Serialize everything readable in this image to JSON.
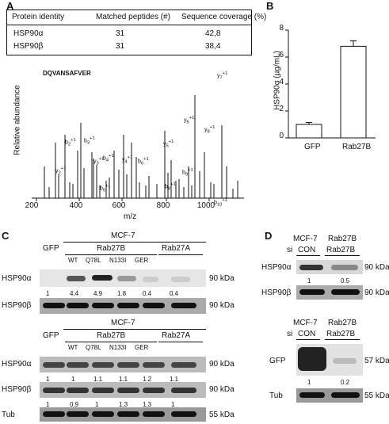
{
  "panels": {
    "a": "A",
    "b": "B",
    "c": "C",
    "d": "D"
  },
  "table": {
    "headers": [
      "Protein identity",
      "Matched peptides (#)",
      "Sequence coverage (%)"
    ],
    "rows": [
      {
        "protein": "HSP90α",
        "peptides": "31",
        "coverage": "42,8"
      },
      {
        "protein": "HSP90β",
        "peptides": "31",
        "coverage": "38,4"
      }
    ]
  },
  "spectrum": {
    "peptide": "DQVANSAFVER",
    "ylabel": "Relative abundance",
    "xlabel": "m/z",
    "xticks": [
      "200",
      "400",
      "600",
      "800",
      "1000"
    ]
  },
  "chart_data": {
    "type": "bar",
    "categories": [
      "GFP",
      "Rab27B"
    ],
    "values": [
      1.0,
      6.8
    ],
    "errors": [
      0.15,
      0.4
    ],
    "ylabel": "HSP90α (µg/mL)",
    "yticks": [
      "0",
      "2",
      "4",
      "6",
      "8"
    ],
    "ylim": [
      0,
      8
    ]
  },
  "c_top": {
    "cell": "MCF-7",
    "groups": [
      "GFP",
      "Rab27B",
      "Rab27A"
    ],
    "variants": [
      "WT",
      "Q78L",
      "N133I",
      "GER"
    ],
    "rows": [
      "HSP90α",
      "HSP90β"
    ],
    "quant": [
      "1",
      "4.4",
      "4.9",
      "1.8",
      "0.4",
      "0.4"
    ],
    "kda": [
      "90 kDa",
      "90 kDa"
    ]
  },
  "c_bottom": {
    "cell": "MCF-7",
    "groups": [
      "GFP",
      "Rab27B",
      "Rab27A"
    ],
    "variants": [
      "WT",
      "Q78L",
      "N133I",
      "GER"
    ],
    "rows": [
      "HSP90α",
      "HSP90β",
      "Tub"
    ],
    "quant_a": [
      "1",
      "1",
      "1.1",
      "1.1",
      "1.2",
      "1.1"
    ],
    "quant_b": [
      "1",
      "0.9",
      "1",
      "1.3",
      "1.3",
      "1"
    ],
    "kda": [
      "90 kDa",
      "90 kDa",
      "55 kDa"
    ]
  },
  "d_top": {
    "header": [
      "MCF-7",
      "Rab27B"
    ],
    "si": "si",
    "conds": [
      "CON",
      "Rab27B"
    ],
    "rows": [
      "HSP90α",
      "HSP90β"
    ],
    "quant": [
      "1",
      "0.5"
    ],
    "kda": [
      "90 kDa",
      "90 kDa"
    ]
  },
  "d_bottom": {
    "header": [
      "MCF-7",
      "Rab27B"
    ],
    "si": "si",
    "conds": [
      "CON",
      "Rab27B"
    ],
    "rows": [
      "GFP",
      "Tub"
    ],
    "quant": [
      "1",
      "0.2"
    ],
    "kda": [
      "57 kDa",
      "55 kDa"
    ]
  }
}
